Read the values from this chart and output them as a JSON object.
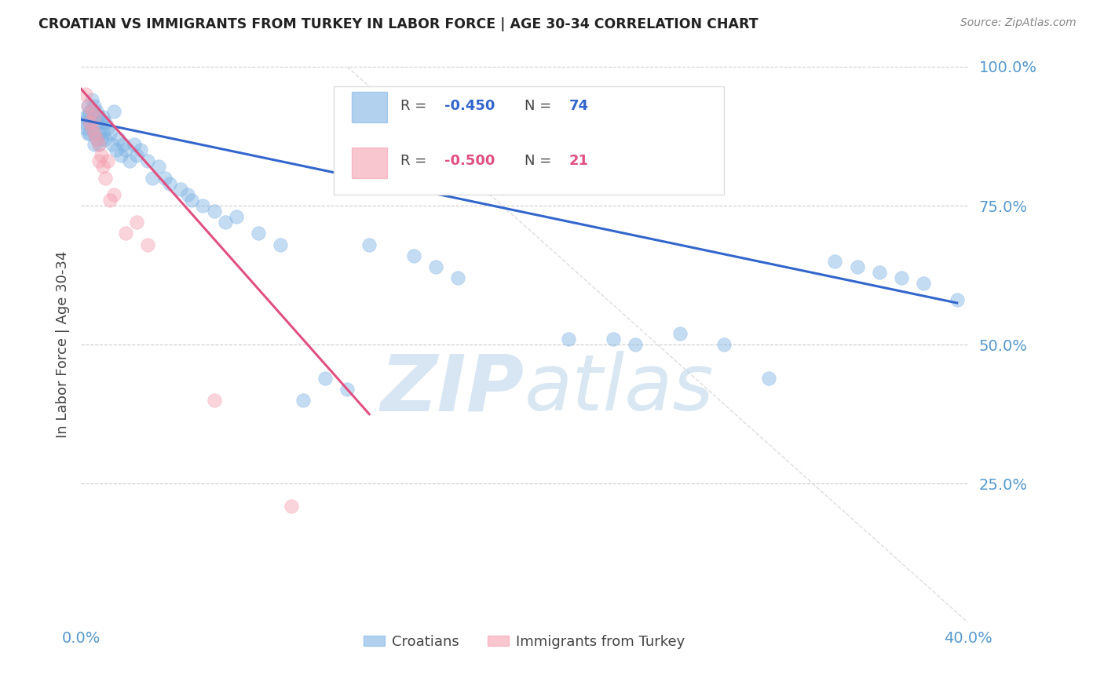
{
  "title": "CROATIAN VS IMMIGRANTS FROM TURKEY IN LABOR FORCE | AGE 30-34 CORRELATION CHART",
  "source": "Source: ZipAtlas.com",
  "ylabel": "In Labor Force | Age 30-34",
  "xlim": [
    0.0,
    0.4
  ],
  "ylim": [
    0.0,
    1.0
  ],
  "legend_blue_r": "R = -0.450",
  "legend_blue_n": "N = 74",
  "legend_pink_r": "R = -0.500",
  "legend_pink_n": "N = 21",
  "legend_label_blue": "Croatians",
  "legend_label_pink": "Immigrants from Turkey",
  "blue_color": "#7EB3E3",
  "pink_color": "#F4A0B0",
  "blue_line_color": "#3366CC",
  "pink_line_color": "#E05080",
  "axis_color": "#5599CC",
  "watermark_color": "#C8DCF0",
  "blue_scatter_x": [
    0.001,
    0.002,
    0.002,
    0.003,
    0.003,
    0.003,
    0.004,
    0.004,
    0.004,
    0.005,
    0.005,
    0.005,
    0.006,
    0.006,
    0.006,
    0.006,
    0.007,
    0.007,
    0.007,
    0.008,
    0.008,
    0.008,
    0.009,
    0.009,
    0.01,
    0.01,
    0.011,
    0.011,
    0.012,
    0.013,
    0.014,
    0.015,
    0.016,
    0.017,
    0.018,
    0.019,
    0.02,
    0.022,
    0.024,
    0.025,
    0.027,
    0.03,
    0.032,
    0.035,
    0.038,
    0.04,
    0.045,
    0.048,
    0.05,
    0.055,
    0.06,
    0.065,
    0.07,
    0.08,
    0.09,
    0.1,
    0.11,
    0.12,
    0.13,
    0.15,
    0.16,
    0.17,
    0.22,
    0.24,
    0.25,
    0.27,
    0.29,
    0.31,
    0.34,
    0.35,
    0.36,
    0.37,
    0.38,
    0.395
  ],
  "blue_scatter_y": [
    0.9,
    0.91,
    0.89,
    0.93,
    0.91,
    0.88,
    0.92,
    0.9,
    0.88,
    0.94,
    0.92,
    0.89,
    0.93,
    0.91,
    0.88,
    0.86,
    0.92,
    0.9,
    0.87,
    0.91,
    0.88,
    0.86,
    0.9,
    0.87,
    0.91,
    0.88,
    0.9,
    0.87,
    0.89,
    0.88,
    0.86,
    0.92,
    0.85,
    0.87,
    0.84,
    0.86,
    0.85,
    0.83,
    0.86,
    0.84,
    0.85,
    0.83,
    0.8,
    0.82,
    0.8,
    0.79,
    0.78,
    0.77,
    0.76,
    0.75,
    0.74,
    0.72,
    0.73,
    0.7,
    0.68,
    0.4,
    0.44,
    0.42,
    0.68,
    0.66,
    0.64,
    0.62,
    0.51,
    0.51,
    0.5,
    0.52,
    0.5,
    0.44,
    0.65,
    0.64,
    0.63,
    0.62,
    0.61,
    0.58
  ],
  "pink_scatter_x": [
    0.002,
    0.003,
    0.004,
    0.005,
    0.005,
    0.006,
    0.006,
    0.007,
    0.008,
    0.008,
    0.009,
    0.01,
    0.011,
    0.012,
    0.013,
    0.015,
    0.02,
    0.025,
    0.03,
    0.06,
    0.095
  ],
  "pink_scatter_y": [
    0.95,
    0.93,
    0.9,
    0.92,
    0.89,
    0.91,
    0.88,
    0.87,
    0.86,
    0.83,
    0.84,
    0.82,
    0.8,
    0.83,
    0.76,
    0.77,
    0.7,
    0.72,
    0.68,
    0.4,
    0.21
  ],
  "blue_line_x": [
    0.0,
    0.395
  ],
  "blue_line_y": [
    0.905,
    0.575
  ],
  "pink_line_x": [
    0.0,
    0.13
  ],
  "pink_line_y": [
    0.96,
    0.375
  ],
  "diag_line_x": [
    0.12,
    0.4
  ],
  "diag_line_y": [
    1.0,
    0.0
  ]
}
